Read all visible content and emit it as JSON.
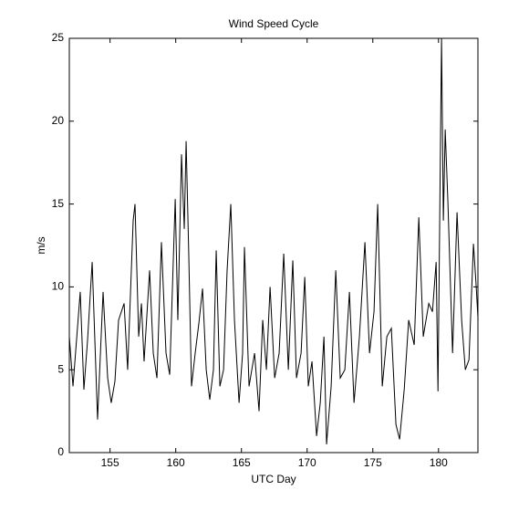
{
  "chart_data": {
    "type": "line",
    "title": "Wind Speed Cycle",
    "x_label": "UTC Day",
    "y_label": "m/s",
    "x": [
      151.9,
      152.18,
      152.73,
      153.01,
      153.29,
      153.64,
      154.05,
      154.47,
      154.82,
      155.09,
      155.37,
      155.65,
      156.07,
      156.34,
      156.76,
      156.9,
      157.18,
      157.39,
      157.59,
      158.01,
      158.29,
      158.57,
      158.91,
      159.26,
      159.54,
      159.96,
      160.16,
      160.44,
      160.65,
      160.79,
      160.99,
      161.2,
      161.48,
      161.76,
      162.04,
      162.32,
      162.59,
      162.87,
      163.08,
      163.36,
      163.64,
      163.91,
      164.19,
      164.47,
      164.82,
      165.09,
      165.23,
      165.58,
      166.0,
      166.34,
      166.62,
      166.9,
      167.18,
      167.53,
      167.87,
      168.22,
      168.57,
      168.91,
      169.19,
      169.54,
      169.82,
      170.09,
      170.37,
      170.72,
      171.0,
      171.28,
      171.48,
      171.83,
      172.18,
      172.52,
      172.87,
      173.22,
      173.57,
      173.98,
      174.4,
      174.75,
      175.09,
      175.37,
      175.72,
      176.07,
      176.41,
      176.76,
      177.04,
      177.39,
      177.73,
      178.15,
      178.5,
      178.84,
      179.26,
      179.54,
      179.82,
      179.96,
      180.23,
      180.37,
      180.51,
      180.72,
      181.07,
      181.41,
      181.76,
      182.04,
      182.32,
      182.66,
      182.87,
      183.01
    ],
    "series": [
      {
        "name": "Wind speed",
        "color": "#000000",
        "values": [
          7,
          4,
          9.7,
          3.8,
          6.8,
          11.5,
          2,
          9.7,
          4.5,
          3,
          4.3,
          8,
          9,
          5,
          14,
          15,
          7,
          9,
          5.5,
          11,
          6,
          4.5,
          12.7,
          6,
          4.7,
          15.3,
          8,
          18,
          13.5,
          18.8,
          12,
          4,
          6,
          7.8,
          9.9,
          5,
          3.2,
          5,
          12.2,
          4,
          5,
          11,
          15,
          8,
          3,
          6,
          12.4,
          4,
          6,
          2.5,
          8,
          5,
          10,
          4.5,
          6,
          12,
          5,
          11.6,
          4.5,
          6,
          10.6,
          4,
          5.5,
          1,
          3,
          7,
          0.5,
          4,
          11,
          4.5,
          5,
          9.7,
          3,
          7,
          12.7,
          6,
          8.5,
          15,
          4,
          7,
          7.5,
          1.7,
          0.8,
          3.8,
          8,
          6.5,
          14.2,
          7,
          9,
          8.5,
          11.5,
          3.7,
          25,
          14,
          19.5,
          15,
          6,
          14.5,
          8,
          5,
          5.6,
          12.6,
          10,
          8
        ]
      }
    ],
    "xlim": [
      151.9,
      183
    ],
    "ylim": [
      0,
      25
    ],
    "xticks": [
      155,
      160,
      165,
      170,
      175,
      180
    ],
    "yticks": [
      0,
      5,
      10,
      15,
      20,
      25
    ],
    "grid": false
  }
}
